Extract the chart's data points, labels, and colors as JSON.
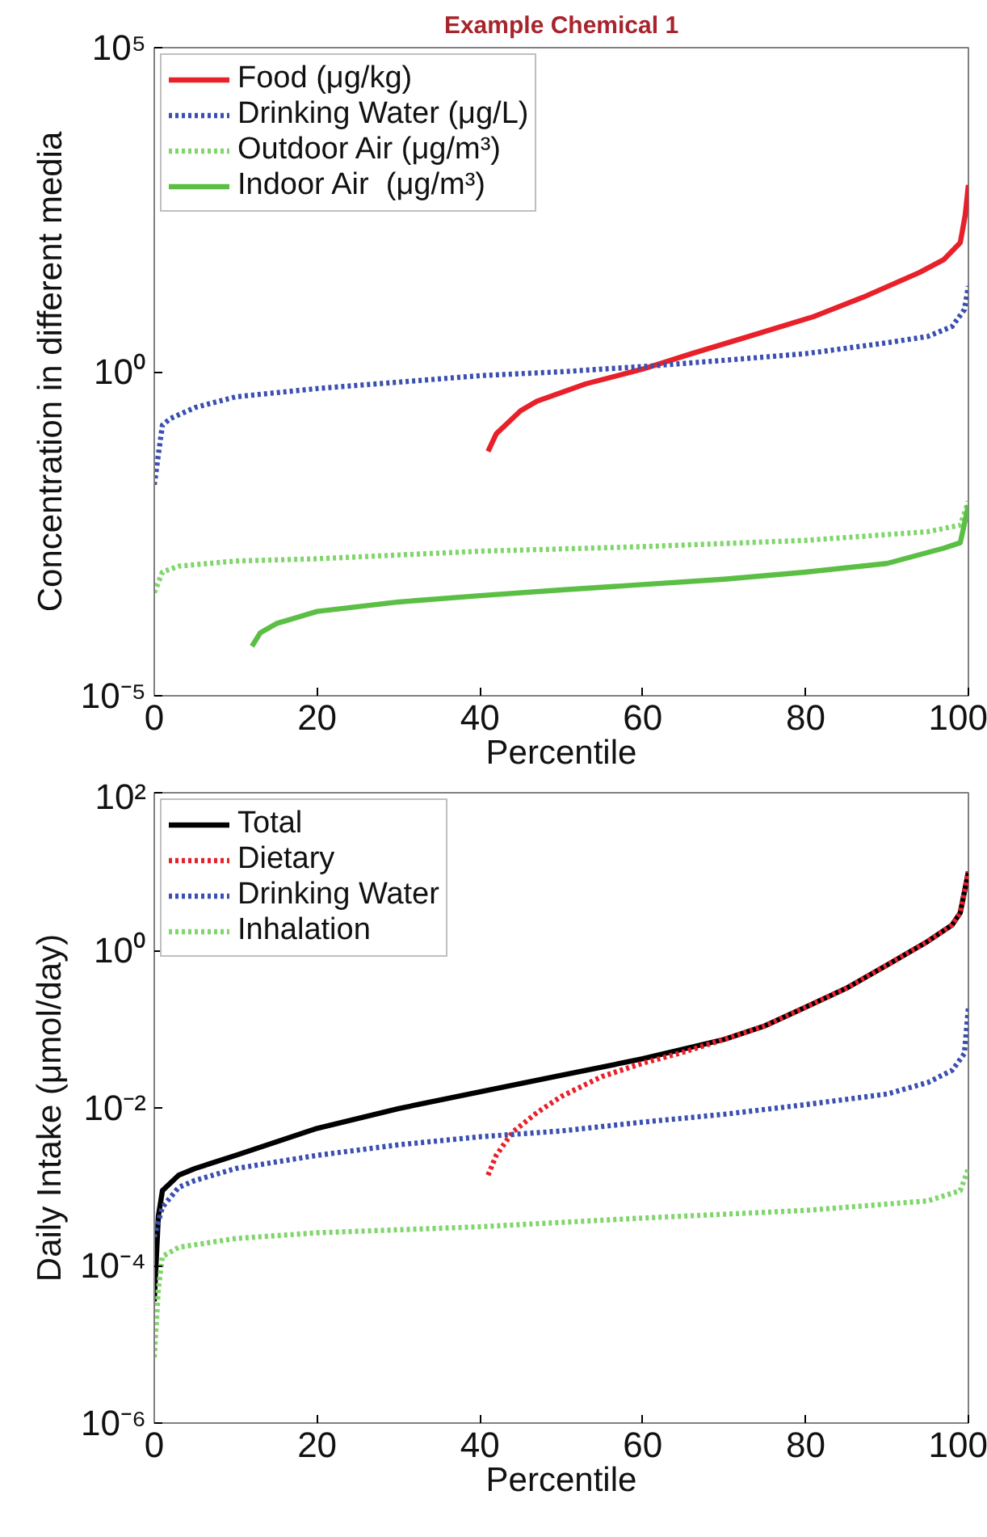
{
  "chart_data": [
    {
      "type": "line",
      "title": "Example Chemical 1",
      "xlabel": "Percentile",
      "ylabel": "Concentration in different media",
      "log": "y",
      "xlim": [
        0,
        100
      ],
      "xticks": [
        0,
        20,
        40,
        60,
        80,
        100
      ],
      "ylim": [
        1e-05,
        100000
      ],
      "yticks": [
        {
          "value": 1e-05,
          "label": "10⁻⁵"
        },
        {
          "value": 1,
          "label": "10⁰"
        },
        {
          "value": 100000,
          "label": "10⁵"
        }
      ],
      "grid": false,
      "legend": "top left",
      "marker": "none",
      "series": [
        {
          "name": "Food (μg/kg)",
          "color": "#e8202a",
          "line_style": "solid",
          "x": [
            41,
            42,
            45,
            47,
            53,
            60,
            66,
            73,
            81,
            87,
            94,
            97,
            99,
            99.6,
            100
          ],
          "values": [
            0.059,
            0.11,
            0.25,
            0.35,
            0.65,
            1.1,
            1.9,
            3.5,
            7.1,
            14,
            34,
            54,
            98,
            260,
            760
          ]
        },
        {
          "name": "Drinking Water (μg/L)",
          "color": "#3a4fb0",
          "line_style": "dotted",
          "x": [
            0,
            1,
            2,
            5,
            10,
            20,
            30,
            40,
            50,
            60,
            70,
            80,
            90,
            95,
            98,
            99.5,
            100
          ],
          "values": [
            0.018,
            0.15,
            0.19,
            0.28,
            0.41,
            0.55,
            0.69,
            0.87,
            1.0,
            1.2,
            1.5,
            1.9,
            2.8,
            3.5,
            5.0,
            9.1,
            21
          ]
        },
        {
          "name": "Outdoor Air (μg/m³)",
          "color": "#7fd66a",
          "line_style": "dotted",
          "x": [
            0,
            1,
            3,
            10,
            20,
            40,
            60,
            80,
            95,
            99,
            100
          ],
          "values": [
            0.00039,
            0.00081,
            0.001,
            0.0012,
            0.0013,
            0.0017,
            0.002,
            0.0025,
            0.0034,
            0.0043,
            0.01
          ]
        },
        {
          "name": "Indoor Air  (μg/m³)",
          "color": "#5cbf45",
          "line_style": "solid",
          "x": [
            12,
            13,
            15,
            20,
            30,
            40,
            50,
            60,
            70,
            80,
            90,
            97,
            99,
            100
          ],
          "values": [
            5.8e-05,
            9.3e-05,
            0.00013,
            0.0002,
            0.00028,
            0.00035,
            0.00043,
            0.00052,
            0.00063,
            0.00081,
            0.0011,
            0.0019,
            0.0023,
            0.0087
          ]
        }
      ]
    },
    {
      "type": "line",
      "xlabel": "Percentile",
      "ylabel": "Daily Intake (μmol/day)",
      "log": "y",
      "xlim": [
        0,
        100
      ],
      "xticks": [
        0,
        20,
        40,
        60,
        80,
        100
      ],
      "ylim": [
        1e-06,
        100
      ],
      "yticks": [
        {
          "value": 1e-06,
          "label": "10⁻⁶"
        },
        {
          "value": 0.0001,
          "label": "10⁻⁴"
        },
        {
          "value": 0.01,
          "label": "10⁻²"
        },
        {
          "value": 1,
          "label": "10⁰"
        },
        {
          "value": 100,
          "label": "10²"
        }
      ],
      "grid": false,
      "legend": "top left",
      "marker": "none",
      "series": [
        {
          "name": "Total",
          "color": "#000000",
          "line_style": "solid",
          "x": [
            0,
            0.5,
            1,
            3,
            5,
            10,
            20,
            30,
            40,
            50,
            60,
            70,
            75,
            80,
            85,
            90,
            95,
            98,
            99,
            100
          ],
          "values": [
            3.5e-05,
            0.00042,
            0.00089,
            0.0014,
            0.0017,
            0.0025,
            0.0055,
            0.0098,
            0.016,
            0.026,
            0.042,
            0.074,
            0.11,
            0.19,
            0.33,
            0.65,
            1.3,
            2.1,
            3.0,
            10
          ]
        },
        {
          "name": "Dietary",
          "color": "#e8202a",
          "line_style": "dotted",
          "x": [
            41,
            42,
            44,
            47,
            50,
            55,
            60,
            65,
            70,
            75,
            80,
            85,
            90,
            95,
            98,
            99,
            100
          ],
          "values": [
            0.0014,
            0.0025,
            0.0049,
            0.0087,
            0.014,
            0.025,
            0.037,
            0.051,
            0.074,
            0.11,
            0.19,
            0.33,
            0.65,
            1.3,
            2.1,
            3.0,
            10
          ]
        },
        {
          "name": "Drinking Water",
          "color": "#3a4fb0",
          "line_style": "dotted",
          "x": [
            0,
            1,
            3,
            5,
            10,
            20,
            30,
            40,
            50,
            60,
            70,
            80,
            90,
            95,
            98,
            99.5,
            100
          ],
          "values": [
            0.00023,
            0.00055,
            0.00098,
            0.0012,
            0.0017,
            0.0025,
            0.0034,
            0.0043,
            0.0051,
            0.0066,
            0.0083,
            0.011,
            0.015,
            0.021,
            0.03,
            0.049,
            0.19
          ]
        },
        {
          "name": "Inhalation",
          "color": "#7fd66a",
          "line_style": "dotted",
          "x": [
            0,
            0.5,
            1,
            3,
            10,
            20,
            40,
            60,
            80,
            95,
            99,
            100
          ],
          "values": [
            6.8e-06,
            5e-05,
            0.00013,
            0.00017,
            0.00022,
            0.00026,
            0.00031,
            0.0004,
            0.0005,
            0.00066,
            0.00089,
            0.0017
          ]
        }
      ]
    }
  ]
}
